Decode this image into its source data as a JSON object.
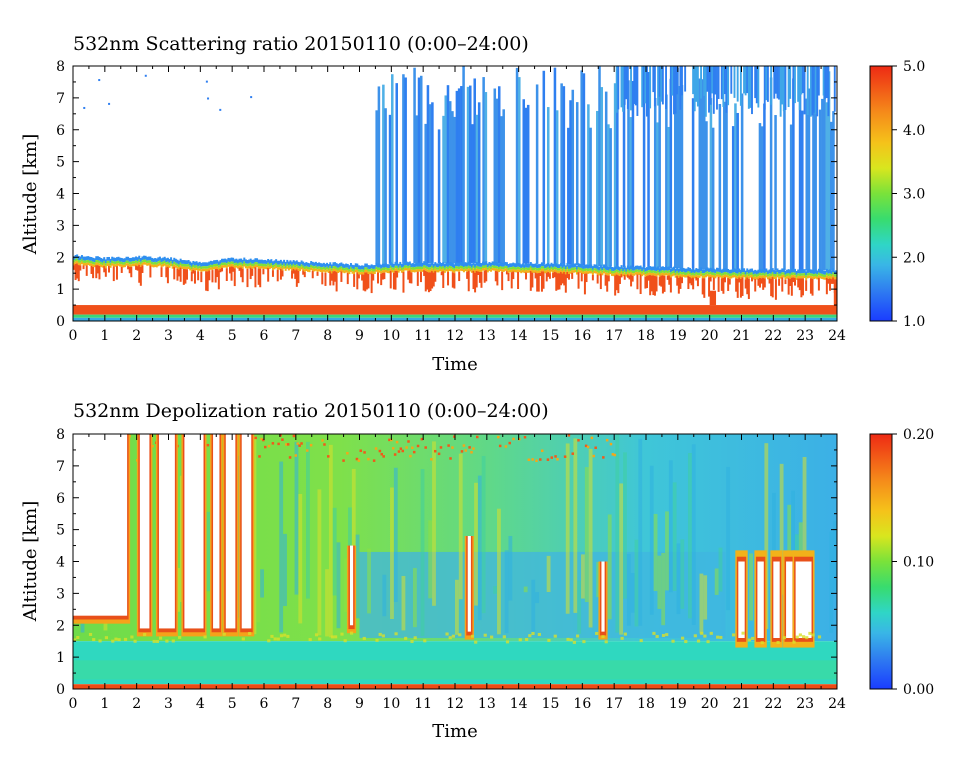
{
  "chart_data": [
    {
      "type": "heatmap",
      "title": "532nm Scattering ratio  20150110 (0:00–24:00)",
      "xlabel": "Time",
      "ylabel": "Altitude [km]",
      "xlim": [
        0,
        24
      ],
      "ylim": [
        0,
        8
      ],
      "x_ticks": [
        "0",
        "1",
        "2",
        "3",
        "4",
        "5",
        "6",
        "7",
        "8",
        "9",
        "10",
        "11",
        "12",
        "13",
        "14",
        "15",
        "16",
        "17",
        "18",
        "19",
        "20",
        "21",
        "22",
        "23",
        "24"
      ],
      "y_ticks": [
        "0",
        "1",
        "2",
        "3",
        "4",
        "5",
        "6",
        "7",
        "8"
      ],
      "colorbar": {
        "min": 1.0,
        "max": 5.0,
        "ticks": [
          "1.0",
          "2.0",
          "3.0",
          "4.0",
          "5.0"
        ]
      },
      "layers": {
        "surface_layer_top_km": 0.5,
        "cloud_base_km": [
          [
            0,
            1.95
          ],
          [
            1,
            1.85
          ],
          [
            2,
            1.9
          ],
          [
            3,
            1.85
          ],
          [
            4,
            1.7
          ],
          [
            5,
            1.85
          ],
          [
            6,
            1.8
          ],
          [
            7,
            1.75
          ],
          [
            8,
            1.7
          ],
          [
            9,
            1.65
          ],
          [
            10,
            1.7
          ],
          [
            11,
            1.72
          ],
          [
            12,
            1.7
          ],
          [
            13,
            1.72
          ],
          [
            14,
            1.7
          ],
          [
            15,
            1.68
          ],
          [
            16,
            1.65
          ],
          [
            17,
            1.6
          ],
          [
            18,
            1.58
          ],
          [
            19,
            1.55
          ],
          [
            20,
            1.52
          ],
          [
            21,
            1.5
          ],
          [
            22,
            1.5
          ],
          [
            23,
            1.48
          ],
          [
            24,
            1.5
          ]
        ],
        "upper_cloud_start_hour": 9.5
      }
    },
    {
      "type": "heatmap",
      "title": "532nm Depolization ratio  20150110 (0:00–24:00)",
      "xlabel": "Time",
      "ylabel": "Altitude [km]",
      "xlim": [
        0,
        24
      ],
      "ylim": [
        0,
        8
      ],
      "x_ticks": [
        "0",
        "1",
        "2",
        "3",
        "4",
        "5",
        "6",
        "7",
        "8",
        "9",
        "10",
        "11",
        "12",
        "13",
        "14",
        "15",
        "16",
        "17",
        "18",
        "19",
        "20",
        "21",
        "22",
        "23",
        "24"
      ],
      "y_ticks": [
        "0",
        "1",
        "2",
        "3",
        "4",
        "5",
        "6",
        "7",
        "8"
      ],
      "colorbar": {
        "min": 0.0,
        "max": 0.2,
        "ticks": [
          "0.00",
          "0.10",
          "0.20"
        ]
      },
      "layers": {
        "surface_layer_top_km": 0.15,
        "boundary_layer_top_km": 1.5,
        "clear_gaps_hours": [
          [
            0.0,
            1.7
          ],
          [
            2.1,
            2.4
          ],
          [
            2.7,
            3.2
          ],
          [
            3.5,
            4.1
          ],
          [
            4.4,
            4.6
          ],
          [
            4.8,
            5.1
          ],
          [
            5.3,
            5.6
          ],
          [
            8.7,
            8.8
          ],
          [
            12.4,
            12.5
          ],
          [
            16.6,
            16.7
          ]
        ],
        "gap_low_km": [
          2.3,
          1.9,
          1.9,
          1.9,
          1.9,
          1.9,
          1.9,
          2.0,
          1.8,
          1.8
        ],
        "gap_high_km": [
          8,
          8,
          8,
          8,
          8,
          8,
          8,
          4.5,
          4.8,
          4.0
        ],
        "pillars_hours": [
          [
            20.9,
            21.1
          ],
          [
            21.5,
            21.7
          ],
          [
            22.0,
            22.2
          ],
          [
            22.4,
            22.6
          ],
          [
            22.7,
            23.2
          ]
        ],
        "pillars_top_km": 4.0,
        "pillars_bottom_km": 1.6
      }
    }
  ]
}
